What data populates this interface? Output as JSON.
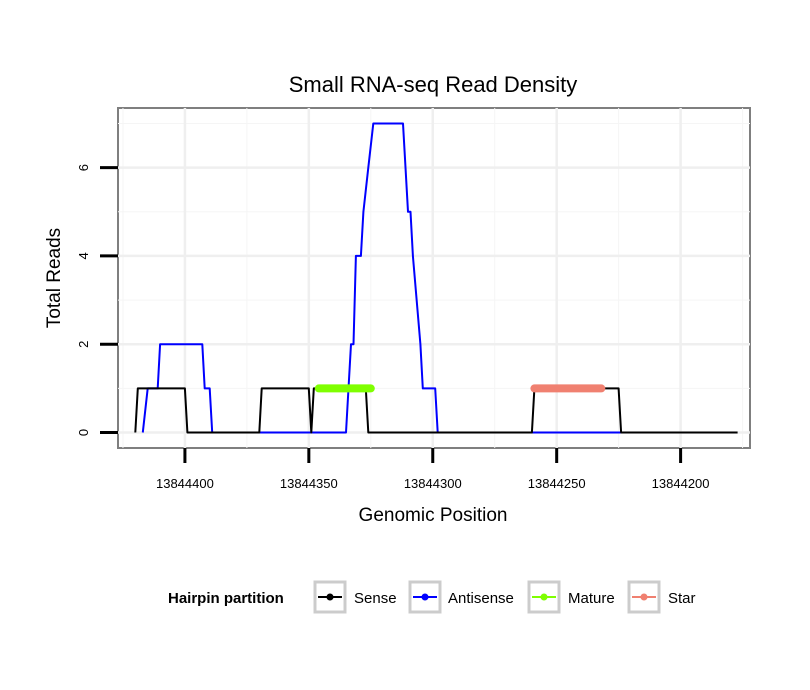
{
  "chart_data": {
    "type": "line",
    "title": "Small RNA-seq Read Density",
    "xlabel": "Genomic Position",
    "ylabel": "Total Reads",
    "x_reversed": true,
    "xlim": [
      13844427,
      13844172
    ],
    "ylim": [
      -0.35,
      7.35
    ],
    "x_ticks": [
      13844400,
      13844350,
      13844300,
      13844250,
      13844200
    ],
    "x_tick_labels": [
      "13844400",
      "13844350",
      "13844300",
      "13844250",
      "13844200"
    ],
    "y_ticks": [
      0,
      2,
      4,
      6
    ],
    "y_tick_labels": [
      "0",
      "2",
      "4",
      "6"
    ],
    "grid": true,
    "legend": {
      "title": "Hairpin partition",
      "position": "bottom",
      "entries": [
        {
          "name": "Sense",
          "color": "#000000"
        },
        {
          "name": "Antisense",
          "color": "#0000ff"
        },
        {
          "name": "Mature",
          "color": "#7fff00"
        },
        {
          "name": "Star",
          "color": "#f08070"
        }
      ]
    },
    "series": [
      {
        "name": "Sense",
        "color": "#000000",
        "points": [
          [
            13844420,
            0
          ],
          [
            13844419,
            1
          ],
          [
            13844415,
            1
          ],
          [
            13844414,
            1
          ],
          [
            13844400,
            1
          ],
          [
            13844399,
            0
          ],
          [
            13844370,
            0
          ],
          [
            13844369,
            1
          ],
          [
            13844350,
            1
          ],
          [
            13844349,
            0
          ],
          [
            13844348,
            1
          ],
          [
            13844327,
            1
          ],
          [
            13844326,
            0
          ],
          [
            13844290,
            0
          ],
          [
            13844284,
            0
          ],
          [
            13844260,
            0
          ],
          [
            13844259,
            1
          ],
          [
            13844225,
            1
          ],
          [
            13844224,
            0
          ],
          [
            13844177,
            0
          ]
        ]
      },
      {
        "name": "Antisense",
        "color": "#0000ff",
        "points": [
          [
            13844417,
            0
          ],
          [
            13844415,
            1
          ],
          [
            13844411,
            1
          ],
          [
            13844410,
            2
          ],
          [
            13844393,
            2
          ],
          [
            13844392,
            1
          ],
          [
            13844390,
            1
          ],
          [
            13844389,
            0
          ],
          [
            13844335,
            0
          ],
          [
            13844333,
            2
          ],
          [
            13844332,
            2
          ],
          [
            13844331,
            4
          ],
          [
            13844329,
            4
          ],
          [
            13844328,
            5
          ],
          [
            13844326,
            6
          ],
          [
            13844324,
            7
          ],
          [
            13844312,
            7
          ],
          [
            13844311,
            6
          ],
          [
            13844310,
            5
          ],
          [
            13844309,
            5
          ],
          [
            13844308,
            4
          ],
          [
            13844305,
            2
          ],
          [
            13844304,
            1
          ],
          [
            13844299,
            1
          ],
          [
            13844298,
            0
          ],
          [
            13844224,
            0
          ]
        ]
      },
      {
        "name": "Mature",
        "color": "#7fff00",
        "points": [
          [
            13844346,
            1
          ],
          [
            13844325,
            1
          ]
        ]
      },
      {
        "name": "Star",
        "color": "#f08070",
        "points": [
          [
            13844259,
            1
          ],
          [
            13844232,
            1
          ]
        ]
      }
    ]
  }
}
